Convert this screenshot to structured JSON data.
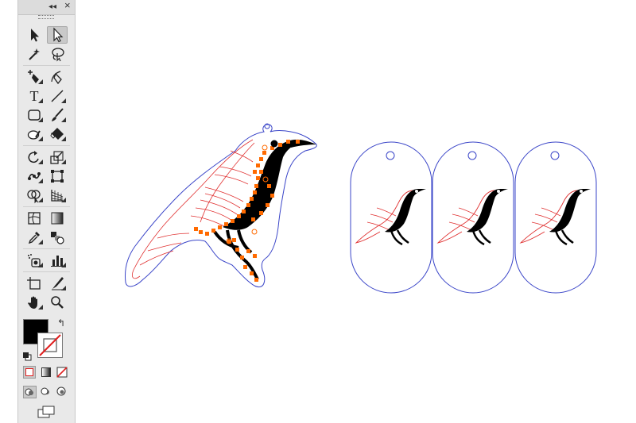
{
  "toolbar": {
    "collapse_glyph": "◂◂",
    "close_glyph": "×",
    "tools": [
      {
        "name": "selection-tool",
        "icon": "arrow-filled-icon"
      },
      {
        "name": "direct-selection-tool",
        "icon": "arrow-hollow-icon",
        "active": true
      },
      {
        "name": "magic-wand-tool",
        "icon": "magic-wand-icon"
      },
      {
        "name": "lasso-tool",
        "icon": "lasso-icon"
      },
      {
        "name": "pen-tool",
        "icon": "pen-plus-icon"
      },
      {
        "name": "curvature-tool",
        "icon": "curvature-pen-icon"
      },
      {
        "name": "type-tool",
        "icon": "type-icon",
        "glyph": "T"
      },
      {
        "name": "line-segment-tool",
        "icon": "line-icon"
      },
      {
        "name": "rectangle-tool",
        "icon": "rounded-rectangle-icon"
      },
      {
        "name": "paintbrush-tool",
        "icon": "brush-icon"
      },
      {
        "name": "shaper-tool",
        "icon": "shaper-icon"
      },
      {
        "name": "eraser-tool",
        "icon": "eraser-icon"
      },
      {
        "name": "rotate-tool",
        "icon": "rotate-icon"
      },
      {
        "name": "scale-tool",
        "icon": "scale-icon"
      },
      {
        "name": "puppet-warp-tool",
        "icon": "puppet-warp-icon"
      },
      {
        "name": "free-transform-tool",
        "icon": "free-transform-icon"
      },
      {
        "name": "shape-builder-tool",
        "icon": "shape-builder-icon"
      },
      {
        "name": "perspective-grid-tool",
        "icon": "perspective-grid-icon"
      },
      {
        "name": "mesh-tool",
        "icon": "mesh-icon"
      },
      {
        "name": "gradient-tool",
        "icon": "gradient-icon"
      },
      {
        "name": "eyedropper-tool",
        "icon": "eyedropper-icon"
      },
      {
        "name": "blend-tool",
        "icon": "blend-icon"
      },
      {
        "name": "symbol-sprayer-tool",
        "icon": "symbol-sprayer-icon"
      },
      {
        "name": "column-graph-tool",
        "icon": "column-graph-icon"
      },
      {
        "name": "artboard-tool",
        "icon": "artboard-icon"
      },
      {
        "name": "slice-tool",
        "icon": "slice-icon"
      },
      {
        "name": "hand-tool",
        "icon": "hand-icon"
      },
      {
        "name": "zoom-tool",
        "icon": "zoom-icon"
      }
    ],
    "fill_color": "#000000",
    "stroke_color": "none",
    "swap_glyph": "↰",
    "modes": [
      "color-mode-icon",
      "gradient-mode-icon",
      "none-mode-icon"
    ],
    "draw_modes": [
      "draw-normal-icon",
      "draw-behind-icon",
      "draw-inside-icon"
    ],
    "screen_mode_icon": "screen-mode-icon"
  },
  "colors": {
    "guide_blue": "#3a45c8",
    "line_red": "#e03030",
    "selection_orange": "#ff6a00",
    "ink": "#000000"
  }
}
